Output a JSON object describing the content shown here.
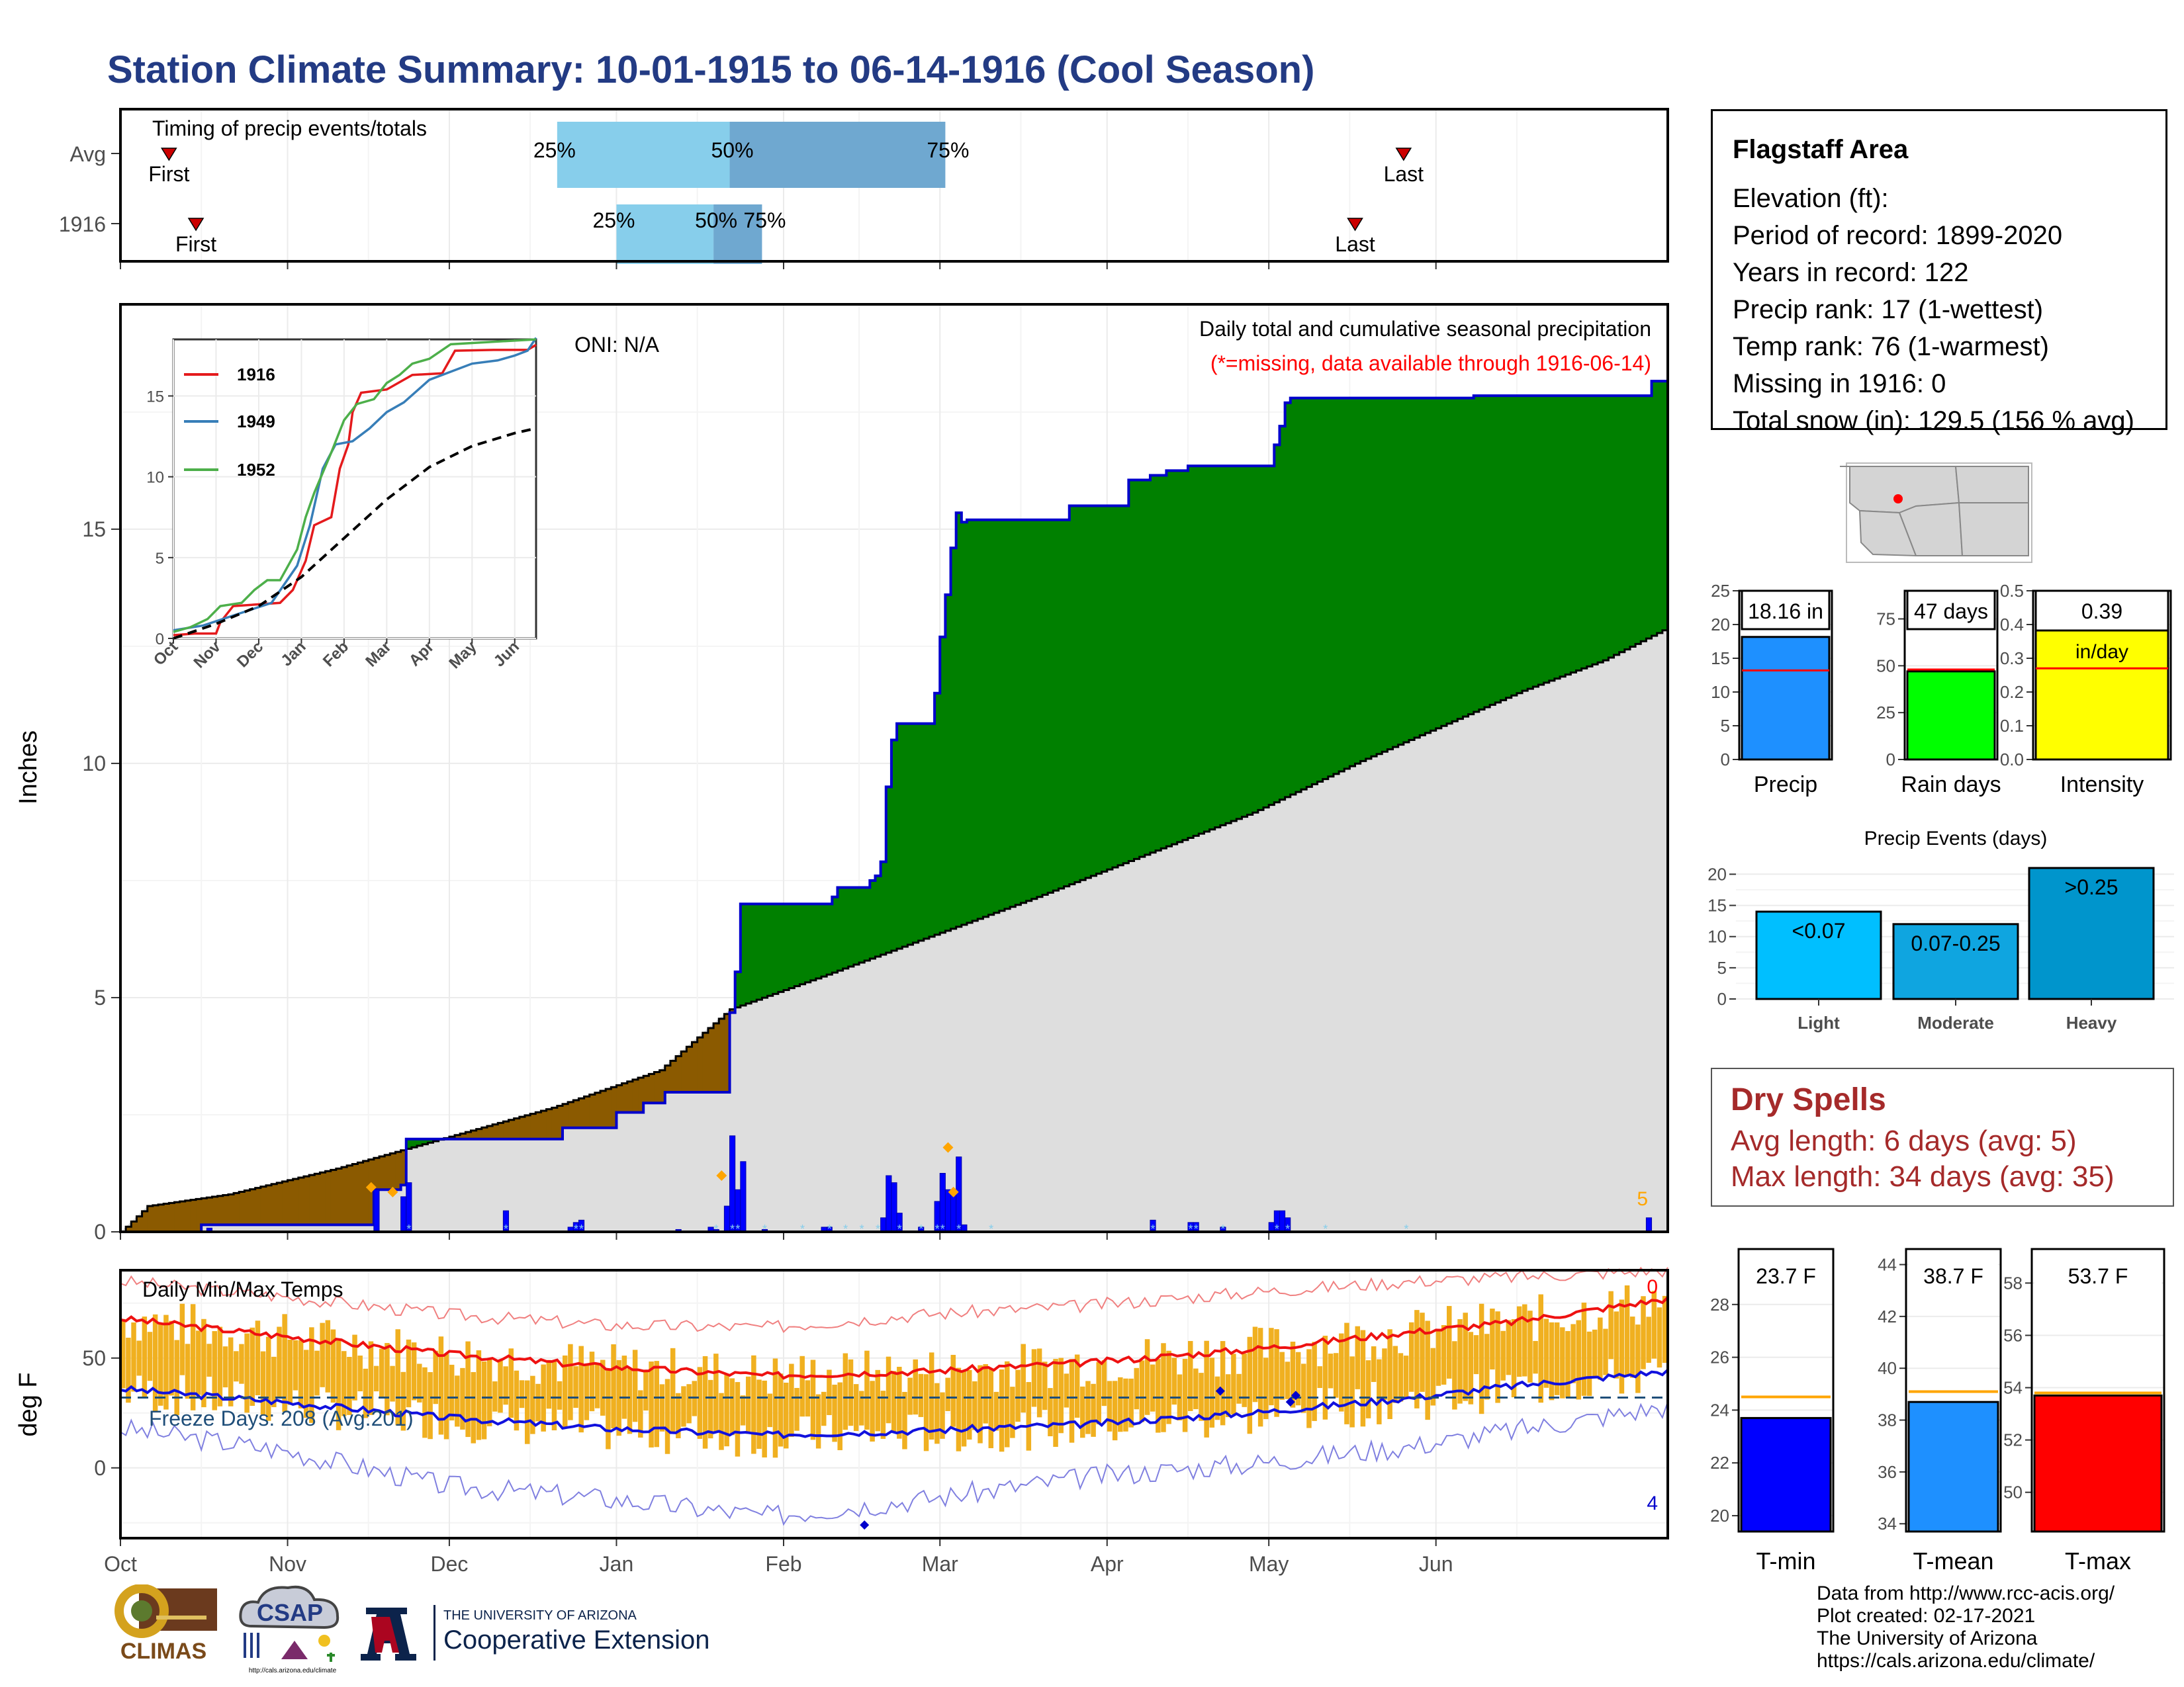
{
  "page": {
    "title": "Station Climate Summary: 10-01-1915 to 06-14-1916 (Cool Season)"
  },
  "station": {
    "name": "Flagstaff Area",
    "lines": [
      "Elevation (ft):",
      "Period of record: 1899-2020",
      "Years in record: 122",
      "Precip rank: 17 (1-wettest)",
      "Temp rank: 76 (1-warmest)",
      "Missing in 1916: 0",
      "Total snow (in): 129.5 (156 % avg)"
    ]
  },
  "dry_spells": {
    "title": "Dry Spells",
    "avg_length": "Avg length: 6 days (avg: 5)",
    "max_length": "Max length: 34 days (avg: 35)"
  },
  "credits": {
    "lines": [
      "Data from http://www.rcc-acis.org/",
      "Plot created: 02-17-2021",
      "The University of Arizona",
      "https://cals.arizona.edu/climate/"
    ]
  },
  "logos": {
    "climas": "CLIMAS",
    "csap": "CSAP",
    "csap_url": "http://cals.arizona.edu/climate",
    "ua_small": "THE UNIVERSITY OF ARIZONA",
    "ua_big": "Cooperative Extension"
  },
  "chart_data": [
    {
      "id": "timing",
      "type": "bar",
      "title": "Timing of precip events/totals",
      "rows": [
        {
          "label": "Avg",
          "first": "Oct 10",
          "p25": "Dec 21",
          "p50": "Jan 22",
          "p75": "Mar 2",
          "last": "May 26"
        },
        {
          "label": "1916",
          "first": "Oct 15",
          "p25": "Jan 1",
          "p50": "Jan 19",
          "p75": "Jan 28",
          "last": "May 17"
        }
      ],
      "marker_labels": {
        "first": "First",
        "last": "Last",
        "p25": "25%",
        "p50": "50%",
        "p75": "75%"
      },
      "colors": {
        "q1": "#87ceeb",
        "q2": "#6fa8d0",
        "marker": "#cc0000"
      }
    },
    {
      "id": "precip",
      "type": "area",
      "title": "Daily total and cumulative seasonal precipitation",
      "subtitle": "(*=missing, data available through 1916-06-14)",
      "oni": "ONI: N/A",
      "ylabel": "Inches",
      "ylim": [
        0,
        19.8
      ],
      "yticks": [
        0,
        5,
        10,
        15
      ],
      "x_months": [
        "Oct",
        "Nov",
        "Dec",
        "Jan",
        "Feb",
        "Mar",
        "Apr",
        "May",
        "Jun"
      ],
      "corner_count": "5",
      "cumulative_observed": [
        [
          0,
          0
        ],
        [
          14,
          0
        ],
        [
          15,
          0.15
        ],
        [
          46,
          0.15
        ],
        [
          47,
          0.9
        ],
        [
          52,
          1.0
        ],
        [
          53,
          1.98
        ],
        [
          81,
          1.98
        ],
        [
          82,
          2.22
        ],
        [
          91,
          2.22
        ],
        [
          92,
          2.55
        ],
        [
          96,
          2.55
        ],
        [
          97,
          2.75
        ],
        [
          100,
          2.75
        ],
        [
          101,
          2.98
        ],
        [
          112,
          2.98
        ],
        [
          113,
          4.68
        ],
        [
          114,
          5.55
        ],
        [
          115,
          7.0
        ],
        [
          131,
          7.0
        ],
        [
          132,
          7.15
        ],
        [
          133,
          7.35
        ],
        [
          138,
          7.35
        ],
        [
          139,
          7.5
        ],
        [
          140,
          7.6
        ],
        [
          141,
          7.9
        ],
        [
          142,
          9.5
        ],
        [
          143,
          10.5
        ],
        [
          144,
          10.85
        ],
        [
          150,
          10.85
        ],
        [
          151,
          11.5
        ],
        [
          152,
          12.7
        ],
        [
          153,
          13.6
        ],
        [
          154,
          14.6
        ],
        [
          155,
          15.35
        ],
        [
          156,
          15.15
        ],
        [
          157,
          15.2
        ],
        [
          175,
          15.2
        ],
        [
          176,
          15.5
        ],
        [
          186,
          15.5
        ],
        [
          187,
          16.05
        ],
        [
          190,
          16.05
        ],
        [
          191,
          16.15
        ],
        [
          194,
          16.25
        ],
        [
          197,
          16.25
        ],
        [
          198,
          16.35
        ],
        [
          213,
          16.35
        ],
        [
          214,
          16.8
        ],
        [
          215,
          17.2
        ],
        [
          216,
          17.7
        ],
        [
          217,
          17.8
        ],
        [
          251,
          17.85
        ],
        [
          283,
          17.85
        ],
        [
          284,
          18.16
        ],
        [
          287,
          18.16
        ]
      ],
      "cumulative_average": [
        [
          0,
          0
        ],
        [
          5,
          0.55
        ],
        [
          20,
          0.8
        ],
        [
          40,
          1.35
        ],
        [
          60,
          2.0
        ],
        [
          80,
          2.65
        ],
        [
          100,
          3.45
        ],
        [
          113,
          4.75
        ],
        [
          130,
          5.45
        ],
        [
          150,
          6.3
        ],
        [
          170,
          7.15
        ],
        [
          190,
          8.05
        ],
        [
          210,
          8.95
        ],
        [
          230,
          10.05
        ],
        [
          245,
          10.8
        ],
        [
          260,
          11.55
        ],
        [
          275,
          12.2
        ],
        [
          287,
          12.9
        ]
      ],
      "daily_bars": [
        [
          16,
          0.08
        ],
        [
          47,
          0.9
        ],
        [
          52,
          0.75
        ],
        [
          53,
          1.05
        ],
        [
          71,
          0.45
        ],
        [
          83,
          0.1
        ],
        [
          84,
          0.2
        ],
        [
          85,
          0.25
        ],
        [
          103,
          0.05
        ],
        [
          109,
          0.1
        ],
        [
          110,
          0.05
        ],
        [
          112,
          0.55
        ],
        [
          113,
          2.05
        ],
        [
          114,
          0.9
        ],
        [
          115,
          1.5
        ],
        [
          119,
          0.05
        ],
        [
          130,
          0.1
        ],
        [
          131,
          0.1
        ],
        [
          141,
          0.3
        ],
        [
          142,
          1.2
        ],
        [
          143,
          1.05
        ],
        [
          144,
          0.4
        ],
        [
          148,
          0.1
        ],
        [
          151,
          0.65
        ],
        [
          152,
          1.25
        ],
        [
          153,
          0.9
        ],
        [
          154,
          0.8
        ],
        [
          155,
          1.6
        ],
        [
          156,
          0.15
        ],
        [
          191,
          0.25
        ],
        [
          198,
          0.2
        ],
        [
          199,
          0.2
        ],
        [
          204,
          0.1
        ],
        [
          213,
          0.2
        ],
        [
          214,
          0.45
        ],
        [
          215,
          0.45
        ],
        [
          216,
          0.3
        ],
        [
          283,
          0.3
        ]
      ],
      "snow_markers": [
        [
          46,
          0.95
        ],
        [
          50,
          0.85
        ],
        [
          111,
          1.2
        ],
        [
          153,
          1.8
        ],
        [
          154,
          0.85
        ]
      ],
      "colors": {
        "above_avg": "#008000",
        "below_avg": "#8b5a00",
        "avg_fill": "#dedede",
        "line": "#0000cc",
        "bars": "#0000ff",
        "snow": "#ffa500"
      }
    },
    {
      "id": "inset",
      "type": "line",
      "ylim": [
        0,
        18.5
      ],
      "yticks": [
        0,
        5,
        10,
        15
      ],
      "x_months": [
        "Oct",
        "Nov",
        "Dec",
        "Jan",
        "Feb",
        "Mar",
        "Apr",
        "May",
        "Jun"
      ],
      "series": [
        {
          "name": "1916",
          "color": "#e41a1c",
          "values": [
            [
              0,
              0.2
            ],
            [
              0.5,
              0.3
            ],
            [
              1,
              0.3
            ],
            [
              1.1,
              1.0
            ],
            [
              1.4,
              2.0
            ],
            [
              2.5,
              2.2
            ],
            [
              2.8,
              3.0
            ],
            [
              3.1,
              4.8
            ],
            [
              3.3,
              7.0
            ],
            [
              3.7,
              7.5
            ],
            [
              3.9,
              10.5
            ],
            [
              4.1,
              12.0
            ],
            [
              4.2,
              14.0
            ],
            [
              4.4,
              15.2
            ],
            [
              5.0,
              15.4
            ],
            [
              5.6,
              16.3
            ],
            [
              6.3,
              16.4
            ],
            [
              6.6,
              17.8
            ],
            [
              7.5,
              17.85
            ],
            [
              8.3,
              17.85
            ],
            [
              8.5,
              18.16
            ]
          ]
        },
        {
          "name": "1949",
          "color": "#377eb8",
          "values": [
            [
              0,
              0.5
            ],
            [
              0.7,
              0.8
            ],
            [
              1.5,
              1.5
            ],
            [
              2.3,
              2.2
            ],
            [
              2.9,
              4.5
            ],
            [
              3.2,
              7.0
            ],
            [
              3.5,
              10.5
            ],
            [
              3.8,
              12.0
            ],
            [
              4.2,
              12.2
            ],
            [
              4.6,
              13.0
            ],
            [
              5.0,
              14.0
            ],
            [
              5.4,
              14.6
            ],
            [
              6.0,
              16.0
            ],
            [
              6.5,
              16.5
            ],
            [
              7.0,
              17.0
            ],
            [
              7.6,
              17.2
            ],
            [
              8.0,
              17.5
            ],
            [
              8.3,
              17.8
            ],
            [
              8.5,
              18.6
            ]
          ]
        },
        {
          "name": "1952",
          "color": "#4daf4a",
          "values": [
            [
              0,
              0.4
            ],
            [
              0.4,
              0.7
            ],
            [
              0.8,
              1.2
            ],
            [
              1.1,
              2.0
            ],
            [
              1.6,
              2.2
            ],
            [
              1.9,
              3.0
            ],
            [
              2.2,
              3.6
            ],
            [
              2.5,
              3.6
            ],
            [
              2.9,
              5.5
            ],
            [
              3.1,
              7.5
            ],
            [
              3.3,
              9.0
            ],
            [
              3.7,
              11.5
            ],
            [
              4.0,
              13.5
            ],
            [
              4.3,
              14.5
            ],
            [
              4.7,
              14.8
            ],
            [
              5.0,
              15.8
            ],
            [
              5.3,
              16.3
            ],
            [
              5.6,
              17.0
            ],
            [
              6.0,
              17.3
            ],
            [
              6.5,
              18.2
            ],
            [
              8.5,
              18.5
            ]
          ]
        },
        {
          "name": "Avg",
          "color": "#000000",
          "values": [
            [
              0,
              0
            ],
            [
              1,
              0.9
            ],
            [
              2,
              2.0
            ],
            [
              3,
              3.8
            ],
            [
              4,
              6.2
            ],
            [
              5,
              8.6
            ],
            [
              6,
              10.6
            ],
            [
              7,
              11.9
            ],
            [
              8,
              12.7
            ],
            [
              8.5,
              13.0
            ]
          ]
        }
      ]
    },
    {
      "id": "temps",
      "type": "line",
      "title": "Daily Min/Max Temps",
      "ylabel": "deg F",
      "ylim": [
        -32,
        90
      ],
      "yticks": [
        0,
        50
      ],
      "freeze_label": "Freeze Days: 208 (Avg:201)",
      "freeze_line": 32,
      "corner_max": "0",
      "corner_min": "4",
      "x_months": [
        "Oct",
        "Nov",
        "Dec",
        "Jan",
        "Feb",
        "Mar",
        "Apr",
        "May",
        "Jun"
      ],
      "avg_max": [
        [
          0,
          68
        ],
        [
          30,
          60
        ],
        [
          60,
          52
        ],
        [
          90,
          46
        ],
        [
          120,
          42
        ],
        [
          150,
          44
        ],
        [
          180,
          48
        ],
        [
          210,
          54
        ],
        [
          240,
          62
        ],
        [
          257,
          66
        ],
        [
          287,
          77
        ]
      ],
      "avg_min": [
        [
          0,
          36
        ],
        [
          30,
          30
        ],
        [
          60,
          23
        ],
        [
          90,
          18
        ],
        [
          120,
          15
        ],
        [
          150,
          17
        ],
        [
          180,
          20
        ],
        [
          210,
          25
        ],
        [
          240,
          32
        ],
        [
          257,
          37
        ],
        [
          287,
          44
        ]
      ],
      "record_max": [
        [
          0,
          85
        ],
        [
          30,
          78
        ],
        [
          60,
          70
        ],
        [
          90,
          65
        ],
        [
          120,
          64
        ],
        [
          150,
          70
        ],
        [
          180,
          74
        ],
        [
          210,
          80
        ],
        [
          240,
          85
        ],
        [
          287,
          90
        ]
      ],
      "record_min": [
        [
          0,
          18
        ],
        [
          30,
          8
        ],
        [
          60,
          -8
        ],
        [
          90,
          -14
        ],
        [
          120,
          -22
        ],
        [
          150,
          -14
        ],
        [
          180,
          -4
        ],
        [
          210,
          2
        ],
        [
          240,
          10
        ],
        [
          287,
          28
        ]
      ],
      "colors": {
        "bars": "#f0b020",
        "avg_max": "#ee1111",
        "avg_min": "#1111dd",
        "record_max": "#f08080",
        "record_min": "#8080e0",
        "freeze": "#1f4e79"
      }
    },
    {
      "id": "small_bars",
      "type": "bar",
      "items": [
        {
          "label": "Precip",
          "value": 18.16,
          "avg": 13.2,
          "ylim": [
            0,
            25
          ],
          "yticks": [
            0,
            5,
            10,
            15,
            20,
            25
          ],
          "box_text": "18.16 in",
          "color": "#1e90ff"
        },
        {
          "label": "Rain days",
          "value": 47,
          "avg": 48,
          "ylim": [
            0,
            90
          ],
          "yticks": [
            0,
            25,
            50,
            75
          ],
          "box_text": "47 days",
          "color": "#00ff00"
        },
        {
          "label": "Intensity",
          "value": 0.39,
          "avg": 0.27,
          "ylim": [
            0,
            0.5
          ],
          "yticks": [
            0.0,
            0.1,
            0.2,
            0.3,
            0.4,
            0.5
          ],
          "box_text": "0.39",
          "box_unit": "in/day",
          "color": "#ffff00"
        }
      ]
    },
    {
      "id": "precip_events",
      "type": "bar",
      "title": "Precip Events (days)",
      "categories": [
        "Light",
        "Moderate",
        "Heavy"
      ],
      "values": [
        14,
        12,
        21
      ],
      "bar_labels": [
        "<0.07",
        "0.07-0.25",
        ">0.25"
      ],
      "ylim": [
        0,
        21
      ],
      "yticks": [
        0,
        5,
        10,
        15,
        20
      ],
      "colors": [
        "#00bfff",
        "#0fa5e0",
        "#0095cc"
      ]
    },
    {
      "id": "temp_bars",
      "type": "bar",
      "items": [
        {
          "label": "T-min",
          "value": 23.7,
          "avg": 24.5,
          "ylim": [
            19.4,
            30.1
          ],
          "yticks": [
            20,
            22,
            24,
            26,
            28
          ],
          "box_text": "23.7 F",
          "color": "#0000ff"
        },
        {
          "label": "T-mean",
          "value": 38.7,
          "avg": 39.1,
          "ylim": [
            33.7,
            44.6
          ],
          "yticks": [
            34,
            36,
            38,
            40,
            42,
            44
          ],
          "box_text": "38.7 F",
          "color": "#1e90ff"
        },
        {
          "label": "T-max",
          "value": 53.7,
          "avg": 53.8,
          "ylim": [
            48.5,
            59.3
          ],
          "yticks": [
            50,
            52,
            54,
            56,
            58
          ],
          "box_text": "53.7 F",
          "color": "#ff0000"
        }
      ]
    }
  ]
}
